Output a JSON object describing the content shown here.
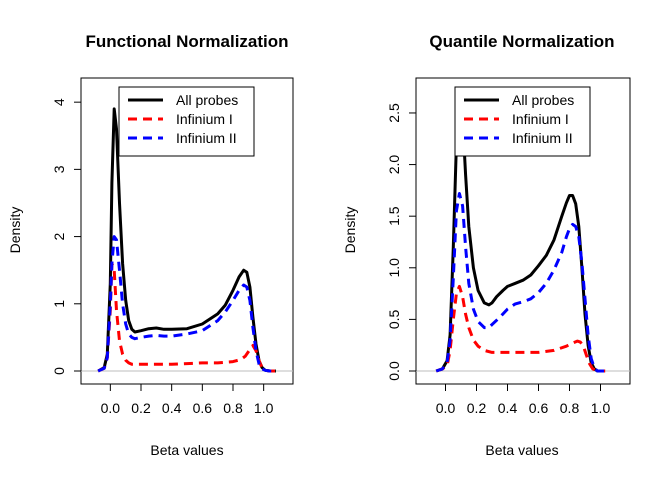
{
  "chart_data": [
    {
      "type": "line",
      "title": "Functional Normalization",
      "xlabel": "Beta values",
      "ylabel": "Density",
      "xlim": [
        -0.1,
        1.1
      ],
      "ylim": [
        0,
        4
      ],
      "xticks": [
        "0.0",
        "0.2",
        "0.4",
        "0.6",
        "0.8",
        "1.0"
      ],
      "yticks": [
        "0",
        "1",
        "2",
        "3",
        "4"
      ],
      "legend": "top-center",
      "grid": false,
      "series": [
        {
          "name": "All probes",
          "color": "#000000",
          "style": "solid",
          "x": [
            -0.08,
            -0.04,
            -0.02,
            0.0,
            0.01,
            0.025,
            0.04,
            0.06,
            0.08,
            0.1,
            0.12,
            0.14,
            0.16,
            0.2,
            0.25,
            0.3,
            0.35,
            0.4,
            0.5,
            0.6,
            0.7,
            0.75,
            0.8,
            0.84,
            0.87,
            0.89,
            0.91,
            0.93,
            0.95,
            0.97,
            0.99,
            1.01,
            1.04,
            1.08
          ],
          "y": [
            0,
            0.05,
            0.25,
            1.3,
            2.8,
            3.9,
            3.6,
            2.5,
            1.6,
            1.05,
            0.75,
            0.62,
            0.58,
            0.6,
            0.63,
            0.64,
            0.62,
            0.62,
            0.63,
            0.7,
            0.85,
            0.98,
            1.2,
            1.4,
            1.5,
            1.47,
            1.25,
            0.8,
            0.4,
            0.15,
            0.05,
            0.01,
            0,
            0
          ]
        },
        {
          "name": "Infinium I",
          "color": "#ff0000",
          "style": "dashed",
          "x": [
            -0.08,
            -0.04,
            -0.02,
            0.0,
            0.01,
            0.025,
            0.04,
            0.06,
            0.08,
            0.1,
            0.12,
            0.14,
            0.17,
            0.2,
            0.25,
            0.3,
            0.4,
            0.5,
            0.6,
            0.7,
            0.8,
            0.85,
            0.88,
            0.91,
            0.93,
            0.95,
            0.97,
            0.99,
            1.01,
            1.04,
            1.08
          ],
          "y": [
            0,
            0.04,
            0.2,
            0.9,
            1.6,
            1.5,
            0.9,
            0.45,
            0.25,
            0.16,
            0.12,
            0.1,
            0.1,
            0.1,
            0.1,
            0.1,
            0.1,
            0.11,
            0.12,
            0.12,
            0.14,
            0.17,
            0.22,
            0.32,
            0.38,
            0.3,
            0.15,
            0.05,
            0.01,
            0,
            0
          ]
        },
        {
          "name": "Infinium II",
          "color": "#0000ff",
          "style": "dashed",
          "x": [
            -0.08,
            -0.04,
            -0.02,
            0.0,
            0.01,
            0.025,
            0.04,
            0.06,
            0.08,
            0.1,
            0.12,
            0.14,
            0.16,
            0.2,
            0.25,
            0.3,
            0.35,
            0.4,
            0.5,
            0.6,
            0.7,
            0.75,
            0.8,
            0.84,
            0.87,
            0.89,
            0.91,
            0.93,
            0.95,
            0.97,
            0.99,
            1.01,
            1.04,
            1.08
          ],
          "y": [
            0,
            0.04,
            0.2,
            1.0,
            1.6,
            2.0,
            1.95,
            1.5,
            1.0,
            0.7,
            0.55,
            0.5,
            0.48,
            0.5,
            0.52,
            0.53,
            0.52,
            0.52,
            0.55,
            0.6,
            0.75,
            0.88,
            1.05,
            1.2,
            1.28,
            1.25,
            1.05,
            0.65,
            0.3,
            0.1,
            0.03,
            0.01,
            0,
            0
          ]
        }
      ]
    },
    {
      "type": "line",
      "title": "Quantile Normalization",
      "xlabel": "Beta values",
      "ylabel": "Density",
      "xlim": [
        -0.1,
        1.1
      ],
      "ylim": [
        0,
        2.75
      ],
      "xticks": [
        "0.0",
        "0.2",
        "0.4",
        "0.6",
        "0.8",
        "1.0"
      ],
      "yticks": [
        "0.0",
        "0.5",
        "1.0",
        "1.5",
        "2.0",
        "2.5"
      ],
      "legend": "top-right",
      "grid": false,
      "series": [
        {
          "name": "All probes",
          "color": "#000000",
          "style": "solid",
          "x": [
            -0.06,
            -0.02,
            0.01,
            0.03,
            0.05,
            0.07,
            0.09,
            0.11,
            0.13,
            0.15,
            0.18,
            0.21,
            0.25,
            0.28,
            0.3,
            0.33,
            0.37,
            0.4,
            0.45,
            0.5,
            0.55,
            0.6,
            0.65,
            0.7,
            0.75,
            0.78,
            0.8,
            0.82,
            0.84,
            0.86,
            0.88,
            0.9,
            0.92,
            0.94,
            0.96,
            0.98,
            1.0,
            1.03
          ],
          "y": [
            0,
            0.02,
            0.1,
            0.35,
            1.2,
            2.2,
            2.6,
            2.45,
            1.9,
            1.4,
            1.0,
            0.78,
            0.66,
            0.64,
            0.66,
            0.72,
            0.78,
            0.82,
            0.85,
            0.88,
            0.93,
            1.02,
            1.12,
            1.27,
            1.5,
            1.63,
            1.7,
            1.7,
            1.62,
            1.4,
            1.0,
            0.55,
            0.25,
            0.08,
            0.02,
            0,
            0,
            0
          ]
        },
        {
          "name": "Infinium I",
          "color": "#ff0000",
          "style": "dashed",
          "x": [
            -0.06,
            -0.02,
            0.01,
            0.03,
            0.05,
            0.07,
            0.09,
            0.11,
            0.13,
            0.15,
            0.18,
            0.21,
            0.25,
            0.3,
            0.35,
            0.4,
            0.5,
            0.6,
            0.7,
            0.78,
            0.82,
            0.85,
            0.87,
            0.89,
            0.91,
            0.93,
            0.95,
            0.98,
            1.0,
            1.03
          ],
          "y": [
            0,
            0.02,
            0.05,
            0.2,
            0.5,
            0.75,
            0.82,
            0.72,
            0.55,
            0.42,
            0.3,
            0.24,
            0.2,
            0.18,
            0.18,
            0.18,
            0.18,
            0.18,
            0.2,
            0.24,
            0.27,
            0.29,
            0.28,
            0.24,
            0.15,
            0.07,
            0.02,
            0,
            0,
            0
          ]
        },
        {
          "name": "Infinium II",
          "color": "#0000ff",
          "style": "dashed",
          "x": [
            -0.06,
            -0.02,
            0.01,
            0.03,
            0.05,
            0.07,
            0.09,
            0.11,
            0.13,
            0.15,
            0.18,
            0.21,
            0.25,
            0.28,
            0.3,
            0.35,
            0.4,
            0.45,
            0.5,
            0.55,
            0.6,
            0.65,
            0.7,
            0.75,
            0.78,
            0.8,
            0.82,
            0.84,
            0.86,
            0.88,
            0.9,
            0.92,
            0.94,
            0.96,
            0.98,
            1.0,
            1.03
          ],
          "y": [
            0,
            0.02,
            0.08,
            0.3,
            0.9,
            1.55,
            1.72,
            1.6,
            1.2,
            0.85,
            0.6,
            0.48,
            0.42,
            0.42,
            0.45,
            0.52,
            0.6,
            0.65,
            0.67,
            0.7,
            0.76,
            0.85,
            0.98,
            1.15,
            1.3,
            1.38,
            1.42,
            1.4,
            1.3,
            1.05,
            0.7,
            0.35,
            0.12,
            0.03,
            0,
            0,
            0
          ]
        }
      ]
    }
  ]
}
